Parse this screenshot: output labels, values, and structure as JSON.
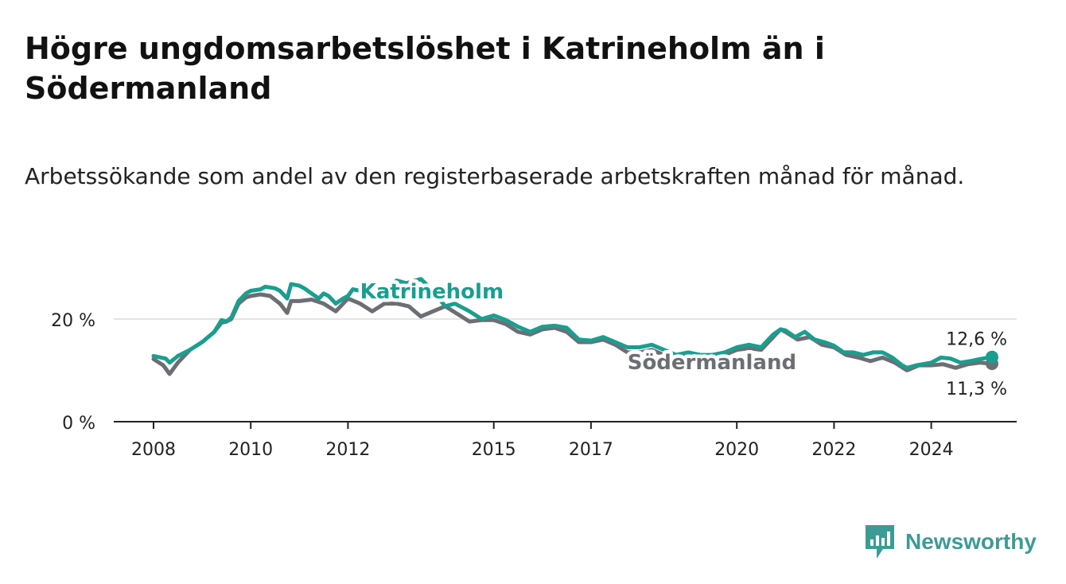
{
  "title": "Högre ungdomsarbetslöshet i Katrineholm än i Södermanland",
  "subtitle": "Arbetssökande som andel av den registerbaserade arbetskraften månad för månad.",
  "logo": {
    "text": "Newsworthy",
    "icon": "bar-chart-logo-icon"
  },
  "colors": {
    "katrineholm": "#1a9e8f",
    "sodermanland": "#6d6e74",
    "grid": "#dcdcdc",
    "axis": "#222222"
  },
  "chart_data": {
    "type": "line",
    "xlabel": "",
    "ylabel": "",
    "xlim": [
      2008,
      2025
    ],
    "ylim": [
      0,
      30
    ],
    "x_ticks": [
      2008,
      2010,
      2012,
      2015,
      2017,
      2020,
      2022,
      2024
    ],
    "x_tick_labels": [
      "2008",
      "2010",
      "2012",
      "2015",
      "2017",
      "2020",
      "2022",
      "2024"
    ],
    "y_ticks": [
      0,
      20
    ],
    "y_tick_labels": [
      "0 %",
      "20 %"
    ],
    "grid": "horizontal",
    "legend": "inline labels",
    "series": [
      {
        "name": "Katrineholm",
        "color": "#1a9e8f",
        "end_label": "12,6 %",
        "points": [
          [
            2008.0,
            12.8
          ],
          [
            2008.25,
            12.3
          ],
          [
            2008.33,
            11.5
          ],
          [
            2008.5,
            12.8
          ],
          [
            2008.75,
            14.0
          ],
          [
            2009.0,
            15.5
          ],
          [
            2009.25,
            17.5
          ],
          [
            2009.4,
            19.8
          ],
          [
            2009.5,
            19.5
          ],
          [
            2009.6,
            20.3
          ],
          [
            2009.75,
            23.5
          ],
          [
            2009.9,
            25.0
          ],
          [
            2010.0,
            25.5
          ],
          [
            2010.2,
            25.8
          ],
          [
            2010.3,
            26.3
          ],
          [
            2010.5,
            26.0
          ],
          [
            2010.6,
            25.5
          ],
          [
            2010.75,
            24.0
          ],
          [
            2010.83,
            26.8
          ],
          [
            2011.0,
            26.5
          ],
          [
            2011.1,
            26.0
          ],
          [
            2011.25,
            25.0
          ],
          [
            2011.4,
            24.0
          ],
          [
            2011.5,
            25.0
          ],
          [
            2011.6,
            24.5
          ],
          [
            2011.75,
            23.0
          ],
          [
            2011.9,
            24.0
          ],
          [
            2012.0,
            24.5
          ],
          [
            2012.1,
            25.8
          ],
          [
            2012.25,
            25.5
          ],
          [
            2012.35,
            27.3
          ],
          [
            2012.45,
            25.0
          ],
          [
            2012.6,
            24.0
          ],
          [
            2012.9,
            26.5
          ],
          [
            2013.0,
            27.5
          ],
          [
            2013.2,
            27.0
          ],
          [
            2013.5,
            27.8
          ],
          [
            2013.7,
            26.0
          ],
          [
            2014.0,
            22.5
          ],
          [
            2014.2,
            23.0
          ],
          [
            2014.5,
            21.5
          ],
          [
            2014.75,
            20.0
          ],
          [
            2015.0,
            20.7
          ],
          [
            2015.25,
            19.8
          ],
          [
            2015.5,
            18.5
          ],
          [
            2015.75,
            17.5
          ],
          [
            2016.0,
            18.5
          ],
          [
            2016.25,
            18.7
          ],
          [
            2016.5,
            18.3
          ],
          [
            2016.75,
            16.0
          ],
          [
            2017.0,
            15.8
          ],
          [
            2017.25,
            16.5
          ],
          [
            2017.5,
            15.5
          ],
          [
            2017.75,
            14.5
          ],
          [
            2018.0,
            14.5
          ],
          [
            2018.25,
            15.0
          ],
          [
            2018.5,
            14.0
          ],
          [
            2018.75,
            13.0
          ],
          [
            2019.0,
            13.5
          ],
          [
            2019.25,
            13.0
          ],
          [
            2019.5,
            13.0
          ],
          [
            2019.75,
            13.5
          ],
          [
            2020.0,
            14.5
          ],
          [
            2020.25,
            15.0
          ],
          [
            2020.5,
            14.5
          ],
          [
            2020.75,
            17.0
          ],
          [
            2020.9,
            18.0
          ],
          [
            2021.0,
            17.8
          ],
          [
            2021.2,
            16.5
          ],
          [
            2021.4,
            17.5
          ],
          [
            2021.6,
            16.0
          ],
          [
            2021.8,
            15.5
          ],
          [
            2022.0,
            14.8
          ],
          [
            2022.2,
            13.5
          ],
          [
            2022.4,
            13.5
          ],
          [
            2022.6,
            13.0
          ],
          [
            2022.8,
            13.5
          ],
          [
            2023.0,
            13.5
          ],
          [
            2023.2,
            12.5
          ],
          [
            2023.4,
            11.0
          ],
          [
            2023.5,
            10.5
          ],
          [
            2023.7,
            11.0
          ],
          [
            2024.0,
            11.5
          ],
          [
            2024.2,
            12.5
          ],
          [
            2024.4,
            12.3
          ],
          [
            2024.6,
            11.5
          ],
          [
            2024.8,
            11.8
          ],
          [
            2025.0,
            12.2
          ],
          [
            2025.25,
            12.6
          ]
        ]
      },
      {
        "name": "Södermanland",
        "color": "#6d6e74",
        "end_label": "11,3 %",
        "points": [
          [
            2008.0,
            12.2
          ],
          [
            2008.2,
            11.0
          ],
          [
            2008.33,
            9.3
          ],
          [
            2008.5,
            11.5
          ],
          [
            2008.75,
            14.0
          ],
          [
            2009.0,
            15.5
          ],
          [
            2009.25,
            17.5
          ],
          [
            2009.4,
            19.3
          ],
          [
            2009.5,
            19.5
          ],
          [
            2009.6,
            20.0
          ],
          [
            2009.75,
            23.0
          ],
          [
            2009.9,
            24.2
          ],
          [
            2010.0,
            24.5
          ],
          [
            2010.2,
            24.8
          ],
          [
            2010.4,
            24.5
          ],
          [
            2010.6,
            23.0
          ],
          [
            2010.75,
            21.2
          ],
          [
            2010.83,
            23.5
          ],
          [
            2011.0,
            23.5
          ],
          [
            2011.25,
            23.8
          ],
          [
            2011.5,
            23.0
          ],
          [
            2011.75,
            21.5
          ],
          [
            2012.0,
            24.0
          ],
          [
            2012.25,
            23.0
          ],
          [
            2012.5,
            21.5
          ],
          [
            2012.75,
            23.0
          ],
          [
            2013.0,
            23.0
          ],
          [
            2013.25,
            22.5
          ],
          [
            2013.5,
            20.5
          ],
          [
            2013.75,
            21.5
          ],
          [
            2014.0,
            22.5
          ],
          [
            2014.25,
            21.0
          ],
          [
            2014.5,
            19.5
          ],
          [
            2014.75,
            19.8
          ],
          [
            2015.0,
            19.8
          ],
          [
            2015.25,
            19.0
          ],
          [
            2015.5,
            17.5
          ],
          [
            2015.75,
            17.0
          ],
          [
            2016.0,
            18.0
          ],
          [
            2016.25,
            18.3
          ],
          [
            2016.5,
            17.5
          ],
          [
            2016.75,
            15.5
          ],
          [
            2017.0,
            15.5
          ],
          [
            2017.25,
            16.0
          ],
          [
            2017.5,
            15.0
          ],
          [
            2017.75,
            13.5
          ],
          [
            2018.0,
            13.5
          ],
          [
            2018.25,
            14.0
          ],
          [
            2018.5,
            13.0
          ],
          [
            2018.75,
            12.5
          ],
          [
            2019.0,
            12.8
          ],
          [
            2019.25,
            12.5
          ],
          [
            2019.5,
            12.5
          ],
          [
            2019.75,
            13.0
          ],
          [
            2020.0,
            14.0
          ],
          [
            2020.25,
            14.3
          ],
          [
            2020.5,
            14.0
          ],
          [
            2020.75,
            16.5
          ],
          [
            2020.9,
            18.0
          ],
          [
            2021.0,
            17.5
          ],
          [
            2021.25,
            16.0
          ],
          [
            2021.5,
            16.5
          ],
          [
            2021.75,
            15.0
          ],
          [
            2022.0,
            14.5
          ],
          [
            2022.25,
            13.0
          ],
          [
            2022.5,
            12.5
          ],
          [
            2022.75,
            11.8
          ],
          [
            2023.0,
            12.5
          ],
          [
            2023.25,
            11.5
          ],
          [
            2023.5,
            10.0
          ],
          [
            2023.75,
            11.0
          ],
          [
            2024.0,
            11.0
          ],
          [
            2024.25,
            11.2
          ],
          [
            2024.5,
            10.5
          ],
          [
            2024.75,
            11.2
          ],
          [
            2025.0,
            11.5
          ],
          [
            2025.25,
            11.3
          ]
        ]
      }
    ],
    "labels": [
      {
        "text": "Katrineholm",
        "series": "Katrineholm",
        "x": 2012.25,
        "y": 24.0
      },
      {
        "text": "Södermanland",
        "series": "Södermanland",
        "x": 2017.75,
        "y": 10.2
      }
    ]
  }
}
